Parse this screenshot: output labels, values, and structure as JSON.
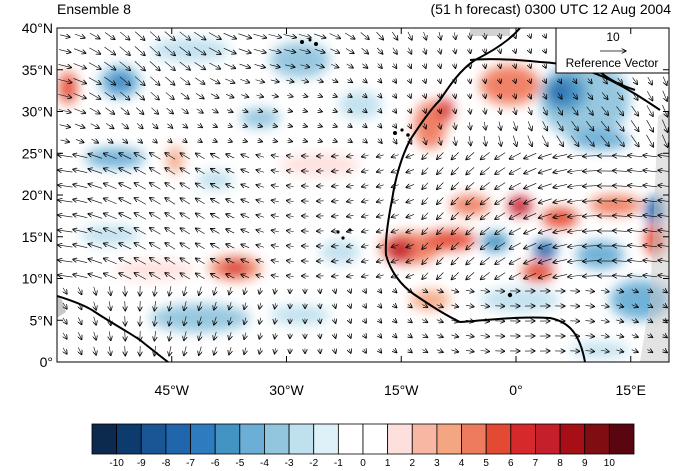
{
  "header": {
    "left_title": "Ensemble 8",
    "right_title": "(51 h forecast) 0300 UTC 12 Aug 2004"
  },
  "map": {
    "lon_range": [
      -60,
      20
    ],
    "lat_range": [
      0,
      40
    ],
    "lat_ticks": [
      {
        "value": 40,
        "label": "40°N"
      },
      {
        "value": 35,
        "label": "35°N"
      },
      {
        "value": 30,
        "label": "30°N"
      },
      {
        "value": 25,
        "label": "25°N"
      },
      {
        "value": 20,
        "label": "20°N"
      },
      {
        "value": 15,
        "label": "15°N"
      },
      {
        "value": 10,
        "label": "10°N"
      },
      {
        "value": 5,
        "label": "5°N"
      },
      {
        "value": 0,
        "label": "0°"
      }
    ],
    "lon_ticks": [
      {
        "value": -45,
        "label": "45°W"
      },
      {
        "value": -30,
        "label": "30°W"
      },
      {
        "value": -15,
        "label": "15°W"
      },
      {
        "value": 0,
        "label": "0°"
      },
      {
        "value": 15,
        "label": "15°E"
      }
    ],
    "reference_vector": {
      "magnitude": "10",
      "label": "Reference Vector"
    }
  },
  "colorbar": {
    "labels": [
      "-10",
      "-9",
      "-8",
      "-7",
      "-6",
      "-5",
      "-4",
      "-3",
      "-2",
      "-1",
      "0",
      "1",
      "2",
      "3",
      "4",
      "5",
      "6",
      "7",
      "8",
      "9",
      "10"
    ],
    "colors": [
      "#0b2a4d",
      "#0d3b6e",
      "#1a5596",
      "#2166ac",
      "#2e7cbf",
      "#4393c3",
      "#6baed6",
      "#92c5de",
      "#bfe0ee",
      "#def0f8",
      "#ffffff",
      "#ffffff",
      "#fde0dd",
      "#f7b7a3",
      "#f4a582",
      "#ef7b5e",
      "#e34a33",
      "#d6292b",
      "#c51f2b",
      "#a50f15",
      "#7f0d12",
      "#5a0610"
    ]
  }
}
